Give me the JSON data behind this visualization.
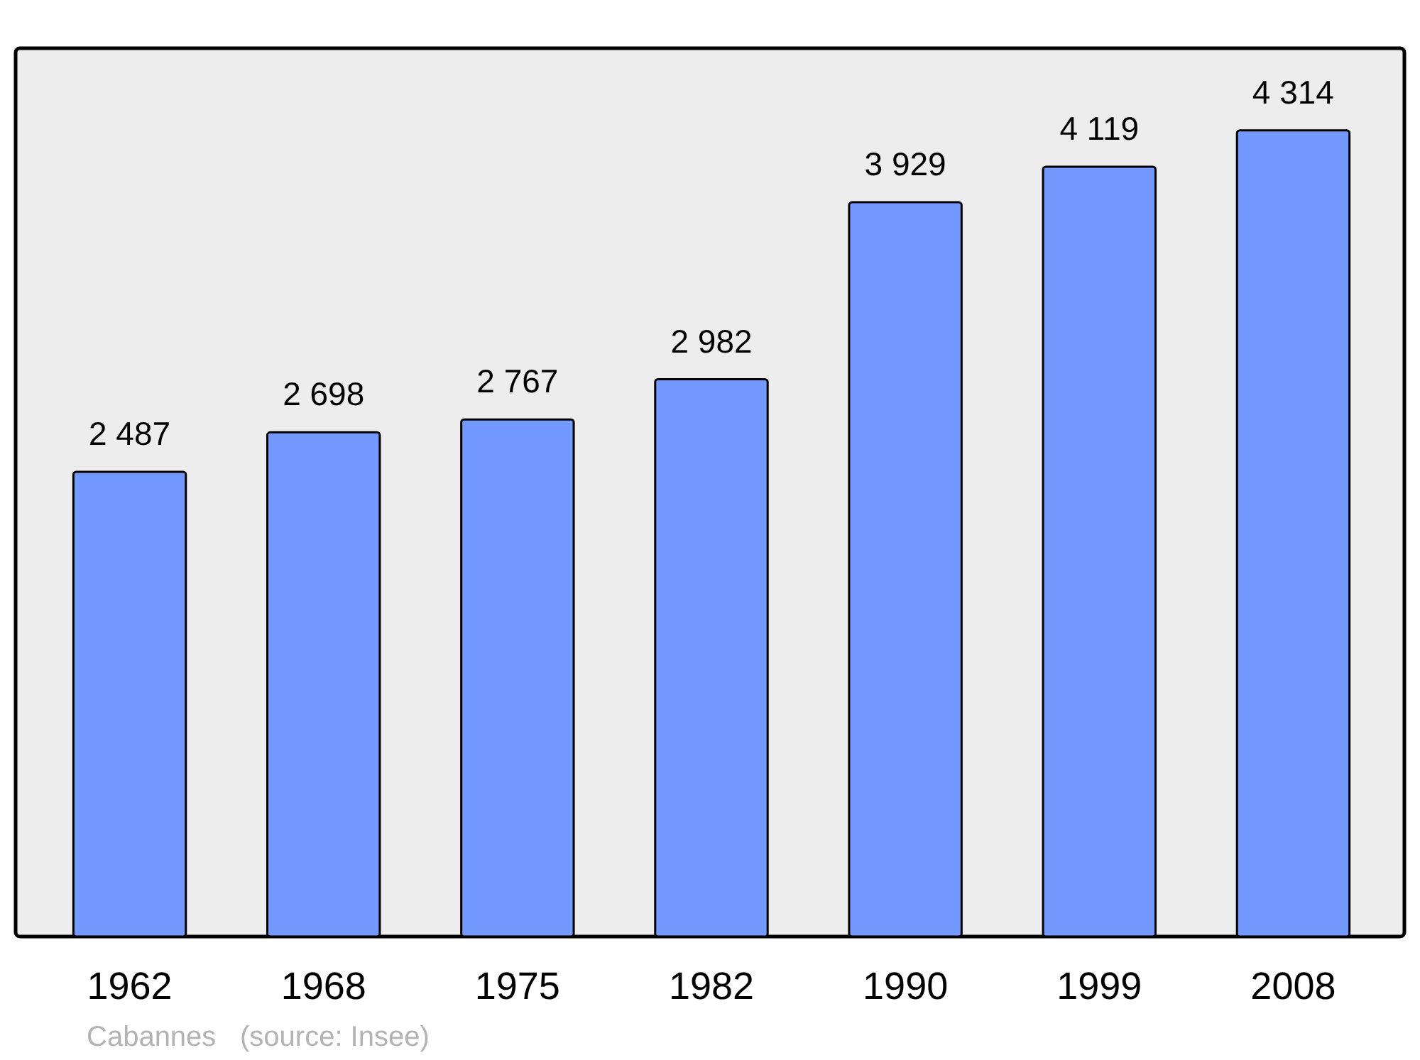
{
  "chart_data": {
    "type": "bar",
    "categories": [
      "1962",
      "1968",
      "1975",
      "1982",
      "1990",
      "1999",
      "2008"
    ],
    "values": [
      2487,
      2698,
      2767,
      2982,
      3929,
      4119,
      4314
    ],
    "value_labels": [
      "2 487",
      "2 698",
      "2 767",
      "2 982",
      "3 929",
      "4 119",
      "4 314"
    ],
    "color": "#7399ff",
    "annotations": [
      "Cabannes",
      "(source: Insee)"
    ]
  }
}
